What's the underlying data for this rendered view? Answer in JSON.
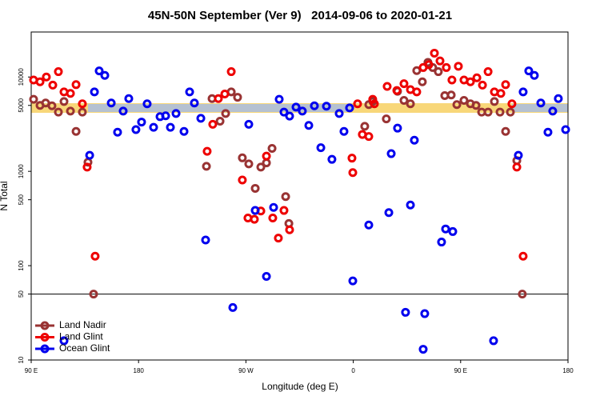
{
  "chart_data": {
    "type": "scatter",
    "title": "45N-50N September (Ver 9)   2014-09-06 to 2020-01-21",
    "x_label": "Longitude (deg E)",
    "y_label": "N Total",
    "log_y": true,
    "xlim": [
      90,
      540
    ],
    "ylim": [
      10,
      30000
    ],
    "xticks": [
      {
        "value": 90,
        "label": "90 E"
      },
      180,
      {
        "value": 270,
        "label": "90 W"
      },
      {
        "value": 360,
        "label": "0"
      },
      {
        "value": 450,
        "label": "90 E"
      },
      {
        "value": 540,
        "label": "180"
      }
    ],
    "yticks": [
      10,
      50,
      100,
      500,
      1000,
      5000,
      10000
    ],
    "reference_line": 50,
    "legend": "bottom-left",
    "series": [
      {
        "name": "Land Nadir",
        "color": "#993333",
        "x": [
          92.0,
          97.4,
          102.1,
          107.4,
          112.8,
          117.5,
          122.9,
          127.6,
          132.9,
          137.6,
          142.3,
          236.9,
          241.6,
          248.3,
          253.0,
          257.7,
          263.0,
          267.0,
          272.4,
          277.8,
          282.5,
          287.2,
          291.9,
          303.3,
          306.0,
          369.6,
          373.0,
          376.3,
          387.7,
          397.1,
          402.5,
          407.9,
          413.2,
          417.9,
          422.6,
          426.6,
          431.3,
          436.7,
          442.1,
          446.8,
          452.8,
          458.2,
          462.9,
          467.6,
          473.0,
          478.3,
          483.0,
          487.7,
          491.7,
          497.1,
          501.7
        ],
        "values": [
          5800,
          5000,
          5300,
          4950,
          4250,
          5500,
          4350,
          2650,
          4250,
          1250,
          50,
          1130,
          5900,
          3400,
          4100,
          6950,
          6100,
          1390,
          1200,
          660,
          1110,
          1230,
          1750,
          540,
          280,
          3000,
          5100,
          5500,
          3600,
          7050,
          5650,
          5200,
          11700,
          8900,
          14300,
          12600,
          11400,
          6350,
          6450,
          5100,
          5650,
          5200,
          5000,
          4250,
          4250,
          5500,
          4250,
          2650,
          4250,
          1300,
          50
        ]
      },
      {
        "name": "Land Glint",
        "color": "#ee0000",
        "x": [
          92.0,
          97.4,
          102.7,
          108.1,
          112.8,
          117.5,
          122.9,
          127.6,
          132.9,
          136.9,
          143.6,
          237.5,
          242.2,
          246.9,
          252.3,
          257.7,
          267.0,
          271.7,
          277.1,
          282.5,
          287.2,
          292.5,
          297.2,
          301.9,
          306.6,
          358.9,
          359.6,
          363.6,
          367.6,
          373.0,
          376.3,
          377.7,
          388.4,
          396.5,
          402.5,
          407.9,
          413.2,
          418.6,
          423.3,
          428.0,
          432.7,
          438.0,
          442.7,
          448.1,
          452.8,
          458.2,
          463.6,
          468.3,
          473.0,
          478.3,
          483.7,
          487.7,
          493.0,
          497.1,
          502.4
        ],
        "values": [
          9300,
          8900,
          10000,
          8200,
          11400,
          6950,
          6700,
          8300,
          5200,
          1110,
          126,
          1630,
          3150,
          5900,
          6600,
          11400,
          810,
          320,
          310,
          380,
          1450,
          320,
          196,
          385,
          240,
          1380,
          970,
          5200,
          2460,
          2340,
          5800,
          5200,
          7950,
          7200,
          8500,
          7350,
          6950,
          12600,
          13500,
          17900,
          14800,
          12600,
          9300,
          13000,
          9300,
          8900,
          9800,
          8200,
          11400,
          6950,
          6700,
          8300,
          5200,
          1110,
          126
        ]
      },
      {
        "name": "Ocean Glint",
        "color": "#0000ee",
        "x": [
          117.5,
          139.0,
          143.0,
          147.0,
          151.7,
          157.1,
          162.4,
          167.1,
          171.8,
          177.8,
          182.5,
          187.2,
          192.6,
          198.0,
          202.7,
          206.7,
          211.4,
          218.1,
          222.8,
          226.8,
          232.2,
          236.2,
          259.0,
          272.4,
          277.8,
          287.2,
          293.2,
          297.9,
          301.9,
          306.6,
          312.0,
          317.3,
          322.7,
          327.4,
          332.8,
          337.5,
          342.1,
          348.2,
          352.2,
          356.9,
          359.6,
          373.0,
          389.8,
          391.8,
          397.1,
          403.8,
          407.9,
          411.2,
          418.6,
          419.9,
          434.0,
          437.4,
          443.4,
          477.6,
          498.4,
          502.4,
          507.1,
          511.8,
          517.2,
          523.2,
          527.2,
          531.9,
          538.0
        ],
        "values": [
          16,
          1480,
          6950,
          11600,
          10400,
          5300,
          2600,
          4350,
          5900,
          2770,
          3330,
          5200,
          2930,
          3800,
          3880,
          2930,
          4100,
          2650,
          6950,
          5300,
          3650,
          187,
          36,
          3150,
          385,
          77,
          415,
          5800,
          4250,
          3850,
          4800,
          4350,
          3070,
          4950,
          1780,
          4900,
          1340,
          4100,
          2650,
          4700,
          69,
          270,
          365,
          1540,
          2870,
          32,
          440,
          2140,
          13,
          31,
          178,
          245,
          230,
          16,
          1480,
          6950,
          11600,
          10400,
          5300,
          2600,
          4350,
          5900,
          2770
        ]
      }
    ]
  }
}
